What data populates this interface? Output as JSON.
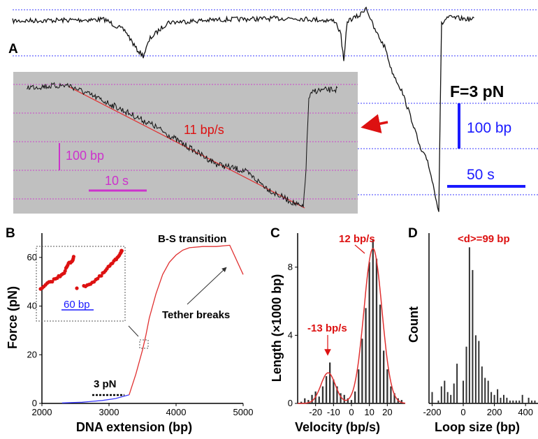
{
  "panel_labels": {
    "a": "A",
    "b": "B",
    "c": "C",
    "d": "D"
  },
  "colors": {
    "trace": "#111111",
    "fit_red": "#e03030",
    "guide_blue": "#3b3bff",
    "inset_grid": "#cc44cc",
    "inset_bg": "#c0c0c0",
    "scale_blue": "#1a1aff",
    "scale_magenta": "#cc33cc",
    "bar_dark": "#333333",
    "annot_red": "#dd1111"
  },
  "panel_a": {
    "force_label": "F=3 pN",
    "scale_bp": "100 bp",
    "scale_s": "50 s"
  },
  "panel_a_inset": {
    "rate_label": "11 bp/s",
    "scale_bp": "100 bp",
    "scale_s": "10 s"
  },
  "chart_data": [
    {
      "id": "B",
      "type": "line",
      "xlabel": "DNA extension (bp)",
      "ylabel": "Force (pN)",
      "xlim": [
        2000,
        5000
      ],
      "ylim": [
        0,
        70
      ],
      "xticks": [
        2000,
        3000,
        4000,
        5000
      ],
      "yticks": [
        0,
        20,
        40,
        60
      ],
      "grid": false,
      "series": [
        {
          "color": "#3b3bff",
          "x": [
            2300,
            2600,
            2900,
            3100,
            3200,
            3300
          ],
          "y": [
            0.2,
            0.5,
            1.2,
            2.0,
            2.8,
            3.5
          ]
        },
        {
          "color": "#e03030",
          "x": [
            3300,
            3400,
            3500,
            3550,
            3600,
            3700,
            3800,
            3900,
            4000,
            4100,
            4200,
            4400,
            4600,
            4800,
            5000
          ],
          "y": [
            3.5,
            12,
            22,
            28,
            35,
            45,
            53,
            58,
            61,
            63,
            64,
            64.5,
            64.5,
            65,
            53
          ]
        }
      ],
      "annotations": {
        "plateau": "3 pN",
        "transition": "B-S transition",
        "breaks": "Tether breaks",
        "inset_scale": "60 bp"
      }
    },
    {
      "id": "C",
      "type": "bar",
      "xlabel": "Velocity (bp/s)",
      "ylabel": "Length (×1000 bp)",
      "xlim": [
        -30,
        30
      ],
      "ylim": [
        0,
        10
      ],
      "xticks": [
        -20,
        -10,
        0,
        10,
        20
      ],
      "yticks": [
        0,
        4,
        8
      ],
      "grid": false,
      "bins_x": [
        -28,
        -26,
        -24,
        -22,
        -20,
        -18,
        -16,
        -14,
        -12,
        -10,
        -8,
        -6,
        -4,
        -2,
        0,
        2,
        4,
        6,
        8,
        10,
        12,
        14,
        16,
        18,
        20,
        22,
        24,
        26,
        28
      ],
      "values": [
        0.1,
        0.3,
        0.2,
        0.5,
        0.7,
        0.4,
        1.0,
        1.6,
        2.4,
        1.4,
        1.0,
        0.6,
        0.5,
        0.3,
        0.2,
        0.7,
        2.0,
        3.8,
        5.6,
        8.3,
        9.6,
        8.5,
        5.8,
        3.1,
        2.0,
        1.0,
        0.6,
        0.3,
        0.2
      ],
      "fit": [
        {
          "amp": 1.8,
          "mean": -13,
          "sd": 4
        },
        {
          "amp": 9.1,
          "mean": 12,
          "sd": 5
        }
      ],
      "annotations": {
        "neg_peak": "-13 bp/s",
        "pos_peak": "12 bp/s"
      }
    },
    {
      "id": "D",
      "type": "bar",
      "xlabel": "Loop size (bp)",
      "ylabel": "Count",
      "xlim": [
        -220,
        480
      ],
      "ylim": [
        0,
        60
      ],
      "xticks": [
        -200,
        0,
        200,
        400
      ],
      "grid": false,
      "bins_x": [
        -200,
        -180,
        -160,
        -140,
        -120,
        -100,
        -80,
        -60,
        -40,
        -20,
        0,
        20,
        40,
        60,
        80,
        100,
        120,
        140,
        160,
        180,
        200,
        220,
        240,
        260,
        280,
        300,
        320,
        340,
        360,
        380,
        400,
        420,
        440,
        460
      ],
      "values": [
        4,
        0,
        1,
        6,
        8,
        4,
        3,
        7,
        14,
        0,
        8,
        20,
        55,
        47,
        24,
        22,
        13,
        9,
        8,
        4,
        3,
        5,
        2,
        3,
        2,
        1,
        1,
        1,
        1,
        3,
        0,
        2,
        1,
        1
      ],
      "annotations": {
        "mean": "<d>=99 bp"
      }
    }
  ]
}
